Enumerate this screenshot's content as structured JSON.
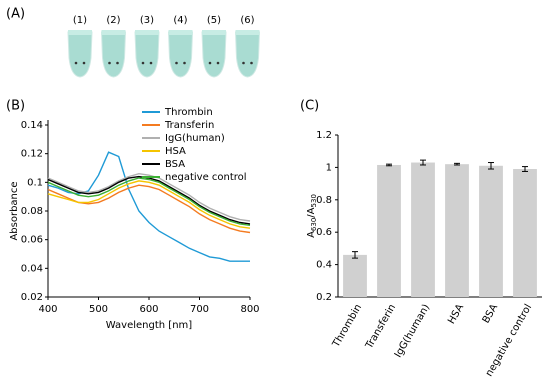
{
  "panel_labels": [
    "(A)",
    "(B)",
    "(C)"
  ],
  "tubes": [
    "(1)",
    "(2)",
    "(3)",
    "(4)",
    "(5)",
    "(6)"
  ],
  "chart_data": [
    {
      "type": "line",
      "x_label": "Wavelength [nm]",
      "y_label": "Absorbance",
      "x": [
        400,
        420,
        440,
        460,
        480,
        500,
        520,
        540,
        560,
        580,
        600,
        620,
        640,
        660,
        680,
        700,
        720,
        740,
        760,
        780,
        800
      ],
      "xlim": [
        400,
        800
      ],
      "xticks": [
        400,
        500,
        600,
        700,
        800
      ],
      "ylim": [
        0.02,
        0.14
      ],
      "yticks": [
        0.02,
        0.04,
        0.06,
        0.08,
        0.1,
        0.12,
        0.14
      ],
      "series": [
        {
          "name": "Thrombin",
          "color": "#1f9ad6",
          "values": [
            0.098,
            0.096,
            0.093,
            0.092,
            0.094,
            0.105,
            0.121,
            0.118,
            0.095,
            0.08,
            0.072,
            0.066,
            0.062,
            0.058,
            0.054,
            0.051,
            0.048,
            0.047,
            0.045,
            0.045,
            0.045
          ]
        },
        {
          "name": "Transferin",
          "color": "#f47b20",
          "values": [
            0.095,
            0.092,
            0.089,
            0.086,
            0.085,
            0.086,
            0.089,
            0.093,
            0.096,
            0.098,
            0.097,
            0.095,
            0.091,
            0.087,
            0.083,
            0.078,
            0.074,
            0.071,
            0.068,
            0.066,
            0.065
          ]
        },
        {
          "name": "IgG(human)",
          "color": "#b0b0b0",
          "values": [
            0.103,
            0.1,
            0.097,
            0.094,
            0.093,
            0.094,
            0.097,
            0.101,
            0.104,
            0.106,
            0.105,
            0.103,
            0.099,
            0.095,
            0.091,
            0.086,
            0.082,
            0.079,
            0.076,
            0.074,
            0.073
          ]
        },
        {
          "name": "HSA",
          "color": "#f5c400",
          "values": [
            0.092,
            0.09,
            0.088,
            0.086,
            0.086,
            0.088,
            0.092,
            0.096,
            0.099,
            0.101,
            0.1,
            0.098,
            0.094,
            0.09,
            0.086,
            0.081,
            0.077,
            0.074,
            0.071,
            0.069,
            0.068
          ]
        },
        {
          "name": "BSA",
          "color": "#000000",
          "values": [
            0.102,
            0.099,
            0.096,
            0.093,
            0.092,
            0.093,
            0.096,
            0.1,
            0.103,
            0.104,
            0.103,
            0.101,
            0.097,
            0.093,
            0.089,
            0.084,
            0.08,
            0.077,
            0.074,
            0.072,
            0.071
          ]
        },
        {
          "name": "negative control",
          "color": "#3cb034",
          "values": [
            0.1,
            0.097,
            0.094,
            0.091,
            0.09,
            0.091,
            0.094,
            0.098,
            0.101,
            0.103,
            0.102,
            0.1,
            0.096,
            0.092,
            0.088,
            0.083,
            0.079,
            0.076,
            0.073,
            0.071,
            0.07
          ]
        }
      ]
    },
    {
      "type": "bar",
      "y_label_parts": [
        "A",
        "630",
        "/A",
        "530"
      ],
      "categories": [
        "Thrombin",
        "Transferin",
        "IgG(human)",
        "HSA",
        "BSA",
        "negative control"
      ],
      "values": [
        0.46,
        1.015,
        1.03,
        1.02,
        1.01,
        0.99
      ],
      "errors": [
        0.02,
        0.005,
        0.015,
        0.005,
        0.02,
        0.015
      ],
      "color": "#d0d0d0",
      "ylim": [
        0.2,
        1.2
      ],
      "yticks": [
        0.2,
        0.4,
        0.6,
        0.8,
        1,
        1.2
      ]
    }
  ]
}
